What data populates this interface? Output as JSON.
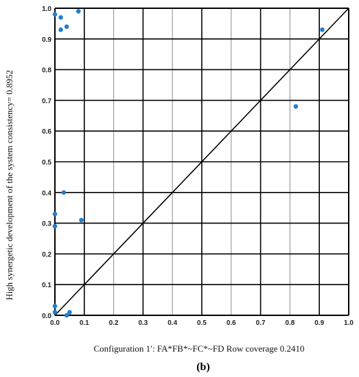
{
  "chart_data": {
    "type": "scatter",
    "title": "",
    "panel_label": "(b)",
    "xlabel": "Configuration 1′: FA*FB*~FC*~FD    Row coverage 0.2410",
    "ylabel": "High synergetic development of the system consistency= 0.8952",
    "xlim": [
      0,
      1
    ],
    "ylim": [
      0,
      1
    ],
    "x_ticks": [
      "0.0",
      "0.1",
      "0.2",
      "0.3",
      "0.4",
      "0.5",
      "0.6",
      "0.7",
      "0.8",
      "0.9",
      "1.0"
    ],
    "y_ticks": [
      "0.0",
      "0.1",
      "0.2",
      "0.3",
      "0.4",
      "0.5",
      "0.6",
      "0.7",
      "0.8",
      "0.9",
      "1.0"
    ],
    "grid": true,
    "diagonal_reference_line": true,
    "point_color": "#1f7fd0",
    "points": [
      {
        "x": 0.0,
        "y": 0.98
      },
      {
        "x": 0.02,
        "y": 0.97
      },
      {
        "x": 0.08,
        "y": 0.99
      },
      {
        "x": 0.04,
        "y": 0.94
      },
      {
        "x": 0.02,
        "y": 0.93
      },
      {
        "x": 0.91,
        "y": 0.93
      },
      {
        "x": 0.82,
        "y": 0.68
      },
      {
        "x": 0.03,
        "y": 0.4
      },
      {
        "x": 0.0,
        "y": 0.33
      },
      {
        "x": 0.09,
        "y": 0.31
      },
      {
        "x": 0.0,
        "y": 0.29
      },
      {
        "x": 0.0,
        "y": 0.03
      },
      {
        "x": 0.0,
        "y": 0.01
      },
      {
        "x": 0.05,
        "y": 0.01
      },
      {
        "x": 0.04,
        "y": 0.0
      }
    ]
  }
}
